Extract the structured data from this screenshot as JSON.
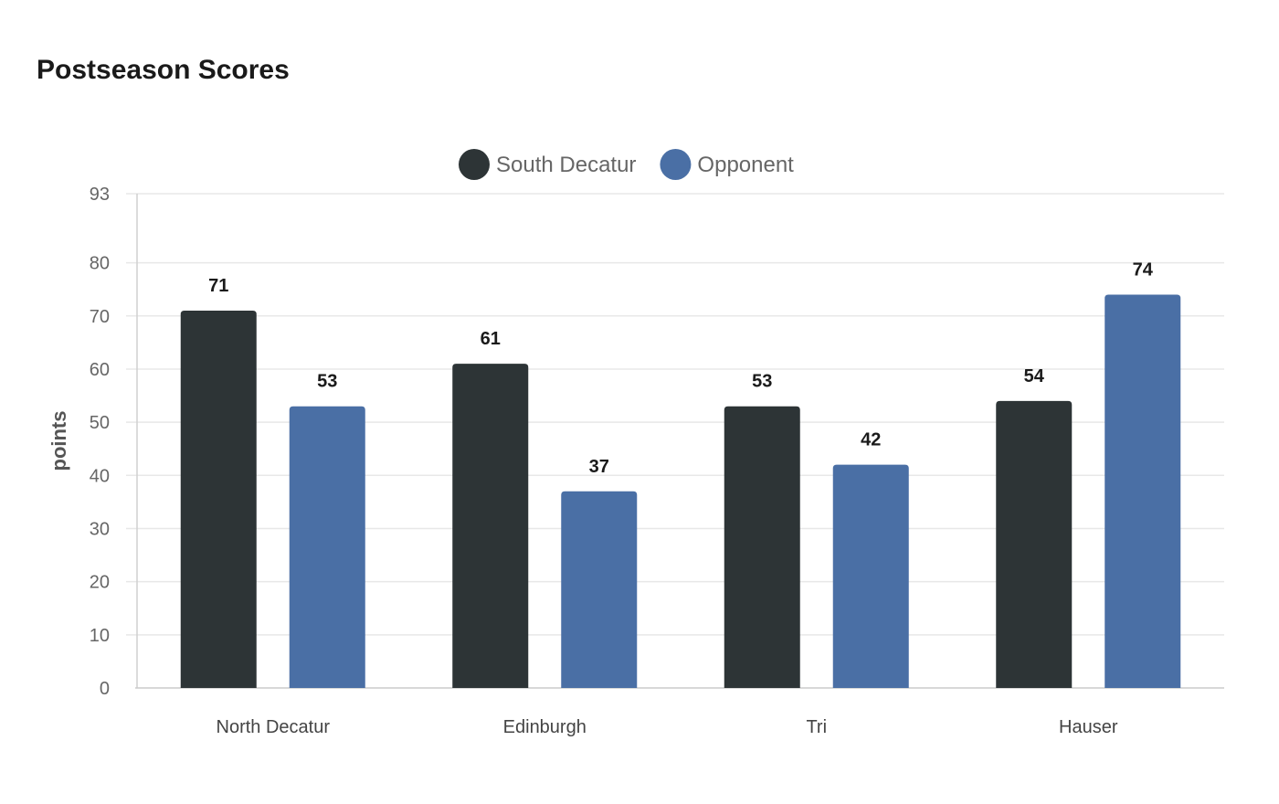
{
  "chart_data": {
    "type": "bar",
    "title": "Postseason Scores",
    "xlabel": "",
    "ylabel": "points",
    "categories": [
      "North Decatur",
      "Edinburgh",
      "Tri",
      "Hauser"
    ],
    "series": [
      {
        "name": "South Decatur",
        "color": "#2d3436",
        "values": [
          71,
          61,
          53,
          54
        ]
      },
      {
        "name": "Opponent",
        "color": "#4a6fa5",
        "values": [
          53,
          37,
          42,
          74
        ]
      }
    ],
    "ylim": [
      0,
      93
    ],
    "yticks": [
      0,
      10,
      20,
      30,
      40,
      50,
      60,
      70,
      80,
      93
    ],
    "grid": true,
    "legend": "top-center",
    "data_labels": true
  }
}
